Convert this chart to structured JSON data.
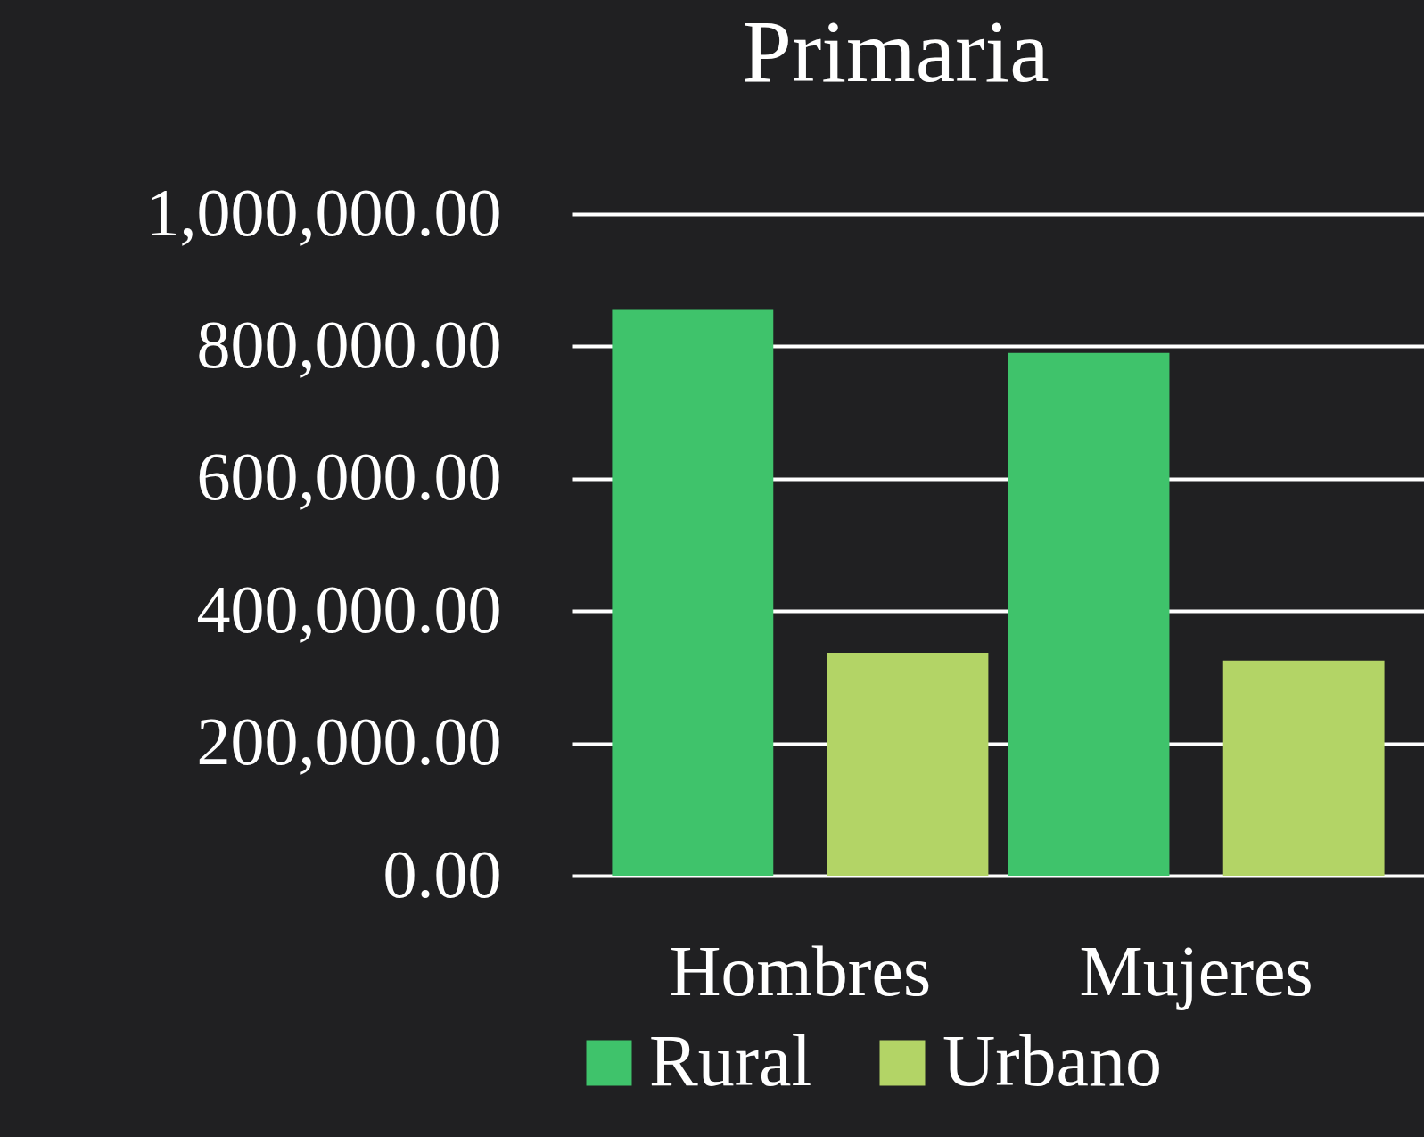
{
  "chart_data": {
    "type": "bar",
    "title": "Primaria",
    "categories": [
      "Hombres",
      "Mujeres"
    ],
    "series": [
      {
        "name": "Rural",
        "color": "#3fc36b",
        "values": [
          855000,
          790000
        ]
      },
      {
        "name": "Urbano",
        "color": "#b3d466",
        "values": [
          337000,
          325000
        ]
      }
    ],
    "ylim": [
      0,
      1000000
    ],
    "yticks": [
      {
        "value": 0,
        "label": "0.00"
      },
      {
        "value": 200000,
        "label": "200,000.00"
      },
      {
        "value": 400000,
        "label": "400,000.00"
      },
      {
        "value": 600000,
        "label": "600,000.00"
      },
      {
        "value": 800000,
        "label": "800,000.00"
      },
      {
        "value": 1000000,
        "label": "1,000,000.00"
      }
    ],
    "grid": "y",
    "legend": "bottom"
  }
}
